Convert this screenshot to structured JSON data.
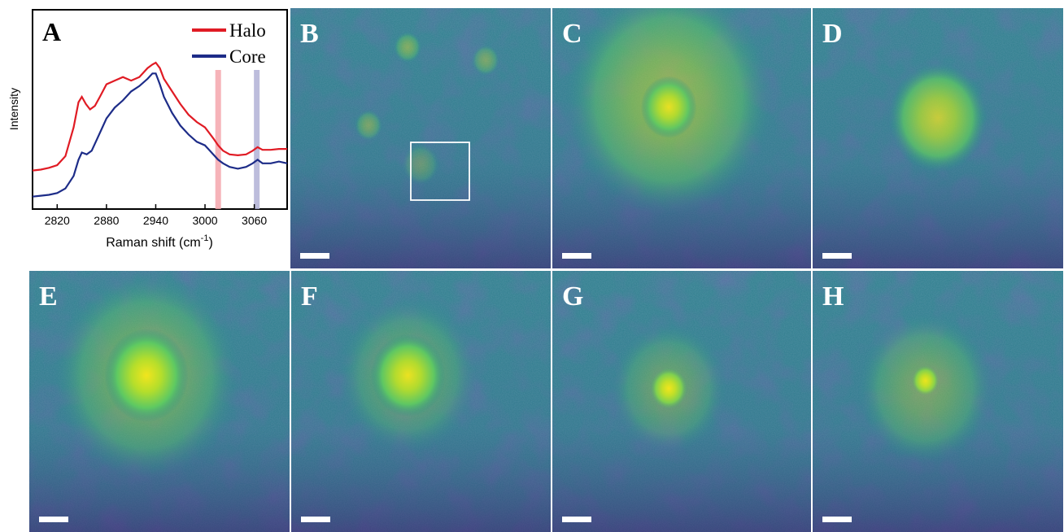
{
  "chart_data": {
    "type": "line",
    "title": "",
    "panel_label": "A",
    "xlabel": "Raman shift (cm",
    "xlabel_sup": "-1",
    "xlabel_close": ")",
    "ylabel": "Intensity",
    "xlim": [
      2790,
      3100
    ],
    "ylim": [
      0,
      1
    ],
    "xticks": [
      2820,
      2880,
      2940,
      3000,
      3060
    ],
    "grid": false,
    "legend_position": "top-right",
    "highlight_bands": [
      {
        "x": 3016,
        "color": "#f4a6ad"
      },
      {
        "x": 3063,
        "color": "#b1b1d6"
      }
    ],
    "series": [
      {
        "name": "Halo",
        "color": "#e01b24",
        "x": [
          2790,
          2800,
          2810,
          2820,
          2830,
          2840,
          2846,
          2850,
          2855,
          2860,
          2866,
          2872,
          2880,
          2890,
          2900,
          2910,
          2920,
          2930,
          2936,
          2940,
          2945,
          2950,
          2960,
          2970,
          2980,
          2990,
          3000,
          3010,
          3016,
          3022,
          3030,
          3040,
          3050,
          3058,
          3064,
          3070,
          3080,
          3090,
          3100
        ],
        "y": [
          0.16,
          0.165,
          0.175,
          0.19,
          0.24,
          0.4,
          0.54,
          0.57,
          0.53,
          0.5,
          0.52,
          0.57,
          0.64,
          0.66,
          0.68,
          0.66,
          0.68,
          0.73,
          0.75,
          0.76,
          0.73,
          0.67,
          0.6,
          0.53,
          0.47,
          0.43,
          0.4,
          0.34,
          0.3,
          0.27,
          0.25,
          0.245,
          0.25,
          0.27,
          0.29,
          0.275,
          0.275,
          0.28,
          0.28
        ]
      },
      {
        "name": "Core",
        "color": "#1d2c88",
        "x": [
          2790,
          2800,
          2810,
          2820,
          2830,
          2840,
          2846,
          2850,
          2856,
          2862,
          2870,
          2880,
          2890,
          2900,
          2910,
          2920,
          2930,
          2936,
          2940,
          2945,
          2950,
          2960,
          2970,
          2980,
          2990,
          3000,
          3010,
          3016,
          3022,
          3030,
          3040,
          3050,
          3058,
          3064,
          3070,
          3080,
          3090,
          3100
        ],
        "y": [
          0.015,
          0.02,
          0.025,
          0.035,
          0.06,
          0.13,
          0.22,
          0.26,
          0.25,
          0.27,
          0.35,
          0.45,
          0.51,
          0.55,
          0.6,
          0.63,
          0.67,
          0.7,
          0.7,
          0.64,
          0.57,
          0.48,
          0.41,
          0.36,
          0.32,
          0.3,
          0.25,
          0.22,
          0.2,
          0.18,
          0.17,
          0.18,
          0.2,
          0.22,
          0.2,
          0.2,
          0.21,
          0.2
        ]
      }
    ]
  },
  "image_panels": [
    {
      "id": "B",
      "label": "B",
      "inset_box": true,
      "blobs": [
        [
          0.5,
          0.6,
          0.08,
          0.25
        ],
        [
          0.45,
          0.15,
          0.06,
          0.4
        ],
        [
          0.75,
          0.2,
          0.06,
          0.35
        ],
        [
          0.3,
          0.45,
          0.06,
          0.35
        ]
      ]
    },
    {
      "id": "C",
      "label": "C",
      "inset_box": false,
      "blobs": [
        [
          0.45,
          0.35,
          0.45,
          0.5
        ],
        [
          0.45,
          0.38,
          0.12,
          0.9
        ]
      ]
    },
    {
      "id": "D",
      "label": "D",
      "inset_box": false,
      "blobs": [
        [
          0.5,
          0.42,
          0.22,
          0.75
        ]
      ]
    },
    {
      "id": "E",
      "label": "E",
      "inset_box": false,
      "blobs": [
        [
          0.45,
          0.4,
          0.4,
          0.4
        ],
        [
          0.45,
          0.4,
          0.18,
          1.0
        ]
      ]
    },
    {
      "id": "F",
      "label": "F",
      "inset_box": false,
      "blobs": [
        [
          0.45,
          0.4,
          0.3,
          0.3
        ],
        [
          0.45,
          0.4,
          0.16,
          0.95
        ]
      ]
    },
    {
      "id": "G",
      "label": "G",
      "inset_box": false,
      "blobs": [
        [
          0.45,
          0.45,
          0.08,
          1.0
        ],
        [
          0.45,
          0.45,
          0.25,
          0.3
        ]
      ]
    },
    {
      "id": "H",
      "label": "H",
      "inset_box": false,
      "blobs": [
        [
          0.45,
          0.42,
          0.06,
          1.0
        ],
        [
          0.45,
          0.45,
          0.3,
          0.35
        ]
      ]
    }
  ]
}
